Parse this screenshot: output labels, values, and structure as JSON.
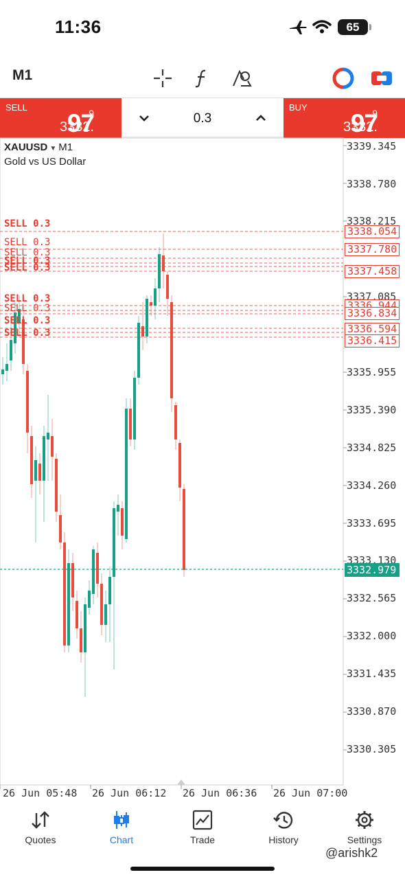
{
  "status_bar": {
    "time": "11:36",
    "battery": "65"
  },
  "toolbar": {
    "timeframe": "M1"
  },
  "trade": {
    "sell": {
      "label": "SELL",
      "price_prefix": "3332.",
      "price_big": "97",
      "price_sup": "9"
    },
    "buy": {
      "label": "BUY",
      "price_prefix": "3332.",
      "price_big": "97",
      "price_sup": "9"
    },
    "volume": "0.3"
  },
  "chart": {
    "symbol": "XAUUSD",
    "timeframe": "M1",
    "description": "Gold vs US Dollar",
    "y_axis_labels": [
      "3339.345",
      "3338.780",
      "3338.215",
      "3337.085",
      "3335.955",
      "3335.390",
      "3334.825",
      "3334.260",
      "3333.695",
      "3333.130",
      "3332.565",
      "3332.000",
      "3331.435",
      "3330.870",
      "3330.305"
    ],
    "x_axis_labels": [
      "26 Jun 05:48",
      "26 Jun 06:12",
      "26 Jun 06:36",
      "26 Jun 07:00"
    ],
    "current_price": "3332.979",
    "order_tags": [
      "3338.054",
      "3337.780",
      "3337.458",
      "3336.944",
      "3336.834",
      "3336.594",
      "3336.415"
    ],
    "order_label": "SELL 0.3",
    "line_color_sell": "#e8392c",
    "bull_color": "#16a085",
    "bear_color": "#e74c3c"
  },
  "nav": {
    "items": [
      {
        "label": "Quotes",
        "icon": "quotes-icon"
      },
      {
        "label": "Chart",
        "icon": "chart-icon",
        "active": true
      },
      {
        "label": "Trade",
        "icon": "trade-icon"
      },
      {
        "label": "History",
        "icon": "history-icon"
      },
      {
        "label": "Settings",
        "icon": "settings-icon"
      }
    ]
  },
  "watermark": "@arishk2"
}
